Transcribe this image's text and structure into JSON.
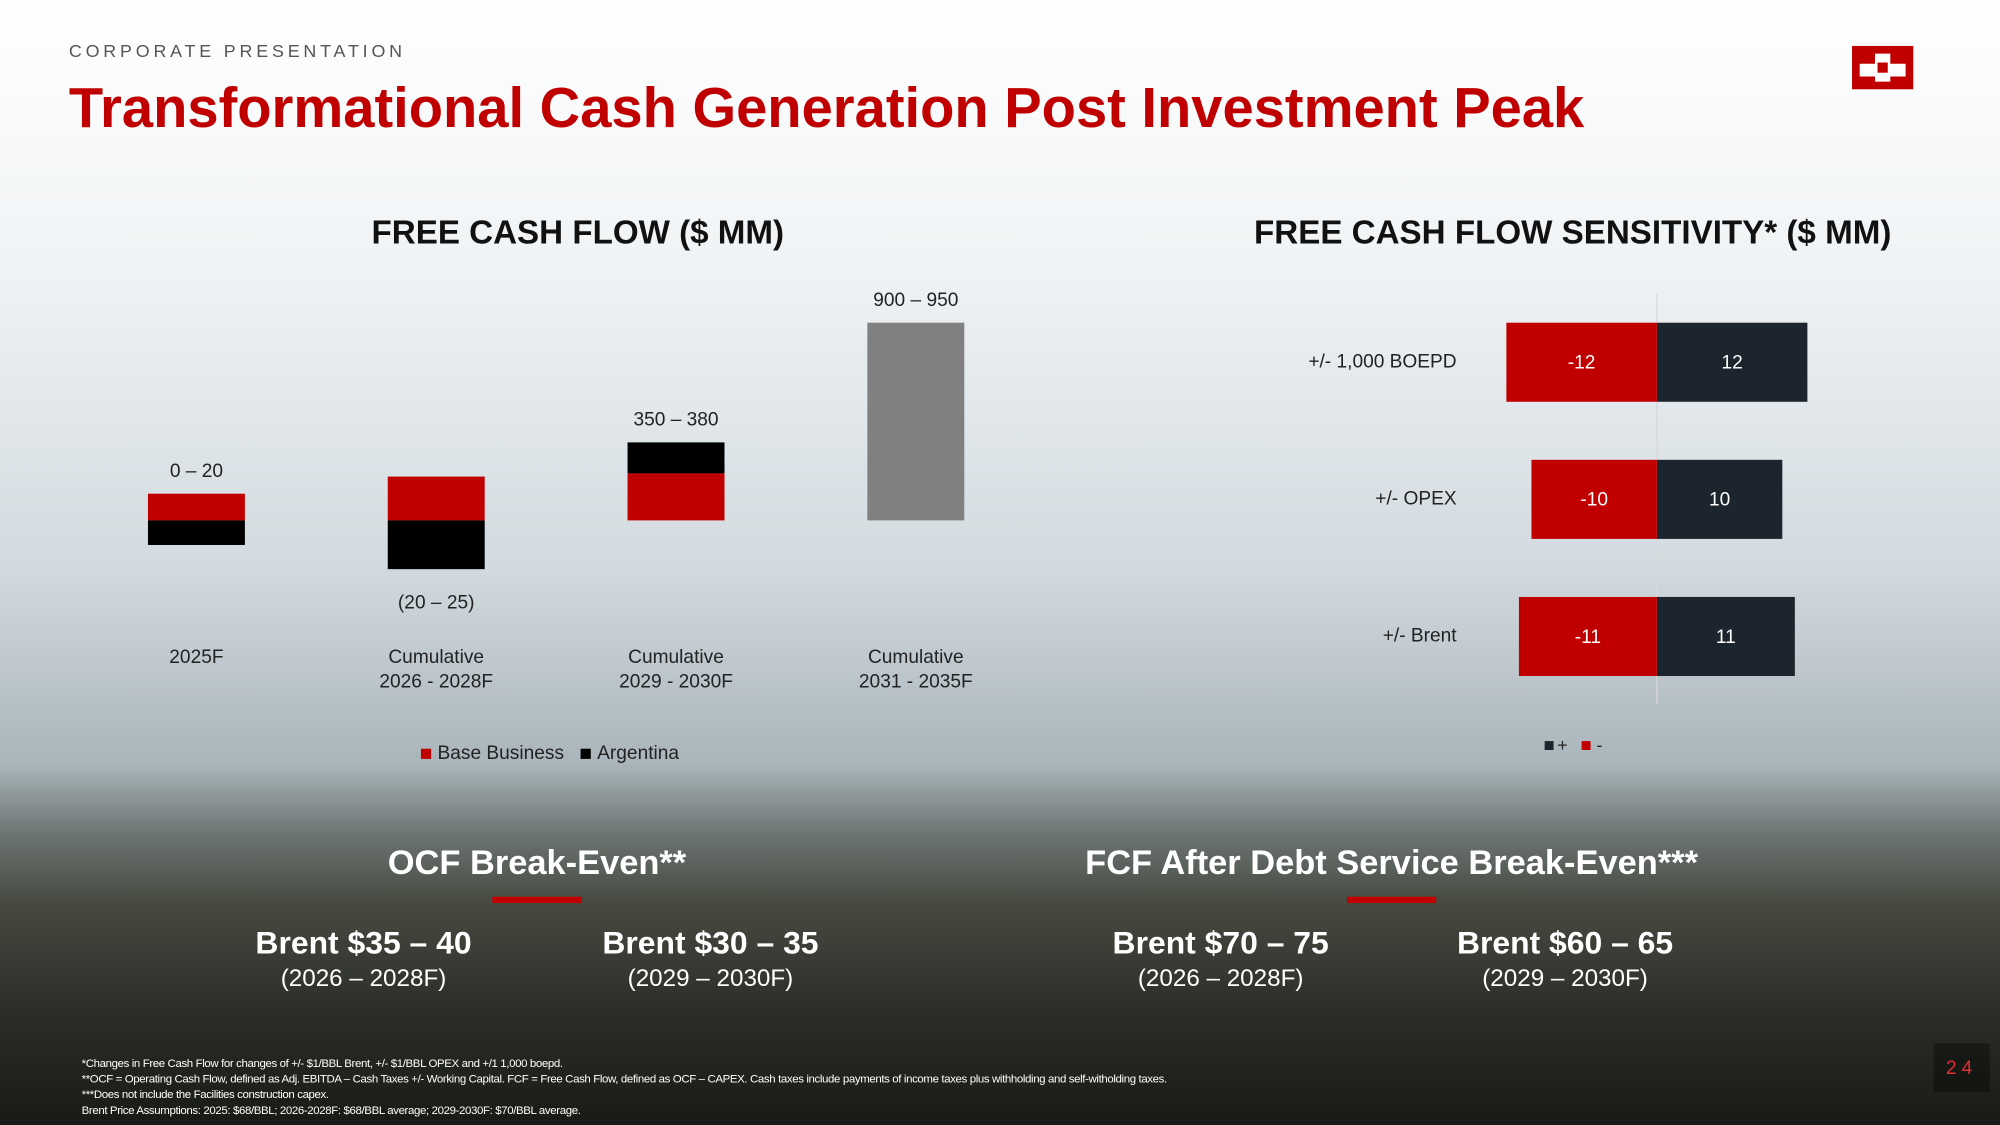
{
  "header": {
    "section": "CORPORATE PRESENTATION",
    "title": "Transformational Cash Generation Post Investment Peak"
  },
  "chart_data": [
    {
      "type": "stacked-bar",
      "title": "FREE CASH FLOW ($ MM)",
      "categories": [
        [
          "2025F"
        ],
        [
          "Cumulative",
          "2026 - 2028F"
        ],
        [
          "Cumulative",
          "2029 - 2030F"
        ],
        [
          "Cumulative",
          "2031 - 2035F"
        ]
      ],
      "range_labels": [
        "0 – 20",
        "(20 – 25)",
        "350 – 380",
        "900 – 950"
      ],
      "series": [
        {
          "name": "Base Business",
          "color": "#c00000",
          "values": [
            125,
            205,
            220,
            null
          ]
        },
        {
          "name": "Argentina",
          "color": "#000000",
          "values": [
            -115,
            -228,
            145,
            null
          ]
        },
        {
          "color": "#808080",
          "values": [
            null,
            null,
            null,
            925
          ]
        }
      ]
    },
    {
      "type": "diverging-hbar",
      "title": "FREE CASH FLOW SENSITIVITY* ($ MM)",
      "categories": [
        "+/- 1,000 BOEPD",
        "+/- OPEX",
        "+/- Brent"
      ],
      "series": [
        {
          "name": "+",
          "color": "#1c252e",
          "values": [
            12,
            10,
            11
          ]
        },
        {
          "name": "-",
          "color": "#c00000",
          "values": [
            -12,
            -10,
            -11
          ]
        }
      ]
    }
  ],
  "break_even": [
    {
      "title": "OCF Break-Even**",
      "items": [
        {
          "price": "Brent $35 – 40",
          "period": "(2026 – 2028F)"
        },
        {
          "price": "Brent $30 – 35",
          "period": "(2029 – 2030F)"
        }
      ]
    },
    {
      "title": "FCF After Debt Service Break-Even***",
      "items": [
        {
          "price": "Brent $70 – 75",
          "period": "(2026 – 2028F)"
        },
        {
          "price": "Brent $60 – 65",
          "period": "(2029 – 2030F)"
        }
      ]
    }
  ],
  "footnotes": [
    "*Changes in Free Cash Flow for changes of +/- $1/BBL Brent, +/- $1/BBL OPEX and +/1 1,000 boepd.",
    "**OCF = Operating Cash Flow, defined as Adj. EBITDA – Cash Taxes +/- Working Capital. FCF = Free Cash Flow, defined as OCF – CAPEX. Cash taxes include payments of income taxes plus withholding and self-witholding taxes.",
    "***Does not include the Facilities construction capex.",
    "Brent Price Assumptions: 2025: $68/BBL; 2026-2028F: $68/BBL average; 2029-2030F: $70/BBL average."
  ],
  "page_number": "24"
}
